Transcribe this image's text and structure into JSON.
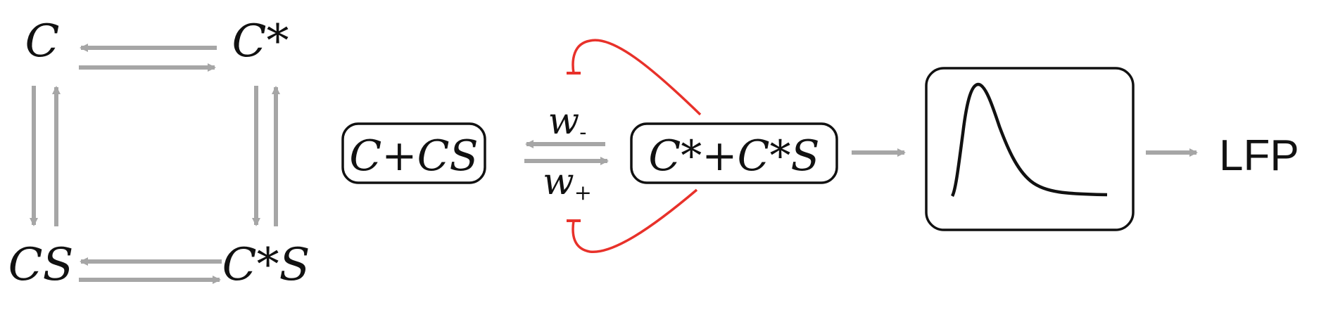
{
  "colors": {
    "arrow": "#a6a6a6",
    "inhibit": "#e8312a",
    "ink": "#111111",
    "box_stroke": "#111111"
  },
  "state_diagram": {
    "top_left": "C",
    "top_right": "C*",
    "bottom_left": "CS",
    "bottom_right": "C*S"
  },
  "reaction": {
    "left_box": "C+CS",
    "right_box": "C*+C*S",
    "rate_minus": "w",
    "rate_minus_sub": "-",
    "rate_plus": "w",
    "rate_plus_sub": "+"
  },
  "output": {
    "label": "LFP"
  }
}
